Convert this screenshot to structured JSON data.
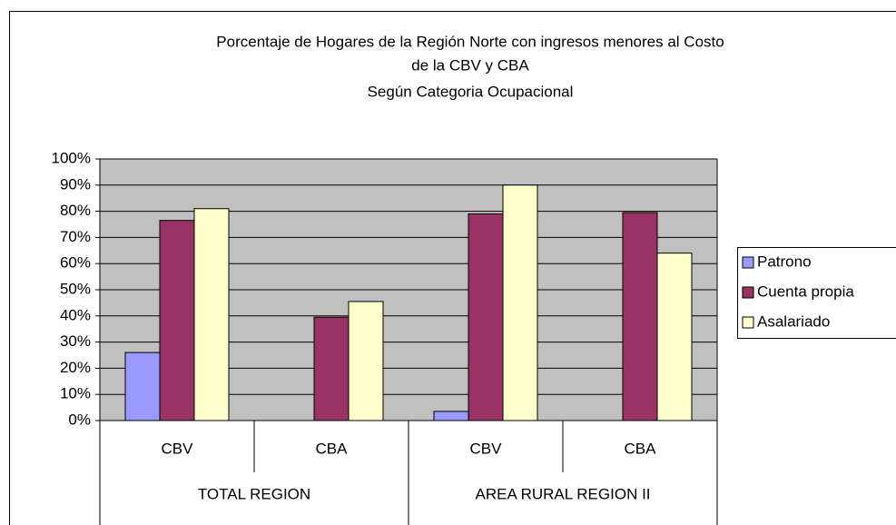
{
  "chart_data": {
    "type": "bar",
    "title": [
      "Porcentaje de Hogares de la Región Norte con ingresos menores al Costo",
      "de la CBV y  CBA",
      "Según Categoria Ocupacional"
    ],
    "categories": [
      "CBV",
      "CBA",
      "CBV",
      "CBA"
    ],
    "groups": [
      "TOTAL REGION",
      "AREA RURAL REGION II"
    ],
    "series": [
      {
        "name": "Patrono",
        "color": "#9999ff",
        "values": [
          26,
          null,
          3.5,
          null
        ]
      },
      {
        "name": "Cuenta propia",
        "color": "#993366",
        "values": [
          76.5,
          39.5,
          79,
          79.5
        ]
      },
      {
        "name": "Asalariado",
        "color": "#ffffcc",
        "values": [
          81,
          45.5,
          90,
          64
        ]
      }
    ],
    "ylim": [
      0,
      100
    ],
    "yticks": [
      {
        "value": 0,
        "label": "0%"
      },
      {
        "value": 10,
        "label": "10%"
      },
      {
        "value": 20,
        "label": "20%"
      },
      {
        "value": 30,
        "label": "30%"
      },
      {
        "value": 40,
        "label": "40%"
      },
      {
        "value": 50,
        "label": "50%"
      },
      {
        "value": 60,
        "label": "60%"
      },
      {
        "value": 70,
        "label": "70%"
      },
      {
        "value": 80,
        "label": "80%"
      },
      {
        "value": 90,
        "label": "90%"
      },
      {
        "value": 100,
        "label": "100%"
      }
    ],
    "grid": true,
    "legend": "right"
  }
}
